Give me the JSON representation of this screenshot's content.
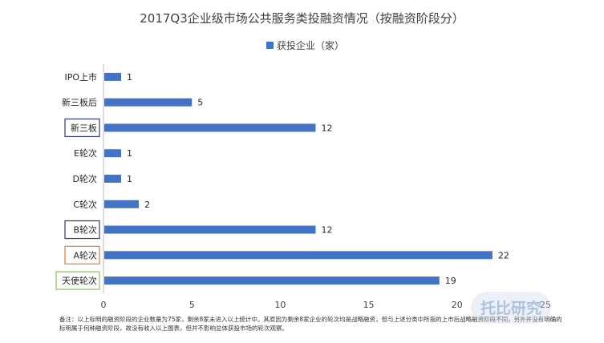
{
  "chart_data": {
    "type": "bar",
    "orientation": "horizontal",
    "title": "2017Q3企业级市场公共服务类投融资情况（按融资阶段分）",
    "categories": [
      "IPO上市",
      "新三板后",
      "新三板",
      "E轮次",
      "D轮次",
      "C轮次",
      "B轮次",
      "A轮次",
      "天使轮次"
    ],
    "series": [
      {
        "name": "获投企业（家）",
        "values": [
          1,
          5,
          12,
          1,
          1,
          2,
          12,
          22,
          19
        ]
      }
    ],
    "xlim": [
      0,
      25
    ],
    "xticks": [
      0,
      5,
      10,
      15,
      20,
      25
    ],
    "grid": false,
    "legend_position": "top",
    "boxed_categories": [
      {
        "category": "新三板",
        "color": "#2e3f6e"
      },
      {
        "category": "B轮次",
        "color": "#2e3f6e"
      },
      {
        "category": "A轮次",
        "color": "#e07b39"
      },
      {
        "category": "天使轮次",
        "color": "#8bc34a"
      }
    ]
  },
  "colors": {
    "bar": "#4472c4",
    "axis": "#bfbfbf",
    "text": "#404040"
  },
  "footnote": "备注：以上标明的融资阶段的企业数量为75家，剩余8家未进入以上统计中。其原因为剩余8家企业的轮次均是战略融资，但与上述分类中所指的上市后战略融资阶段不同，另外并没有明确的标明属于何种融资阶段，故没有收入以上图表，但并不影响总体获投市场的轮次观察。",
  "watermark": {
    "text": "托比研究"
  }
}
